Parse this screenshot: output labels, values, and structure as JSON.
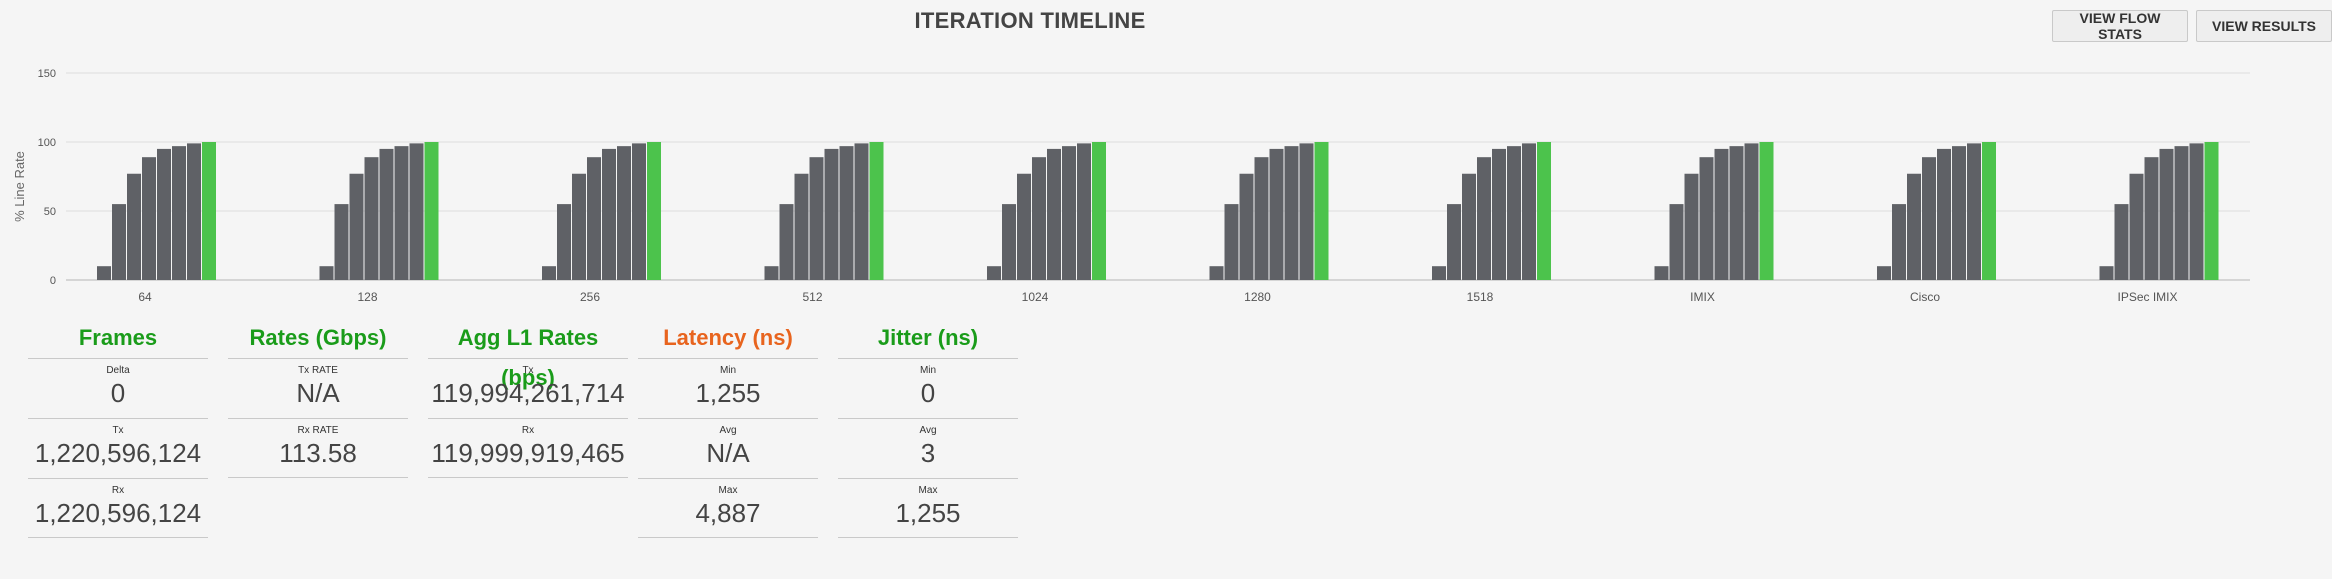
{
  "title": "ITERATION TIMELINE",
  "buttons": {
    "view_flow_stats": "VIEW FLOW STATS",
    "view_results": "VIEW RESULTS"
  },
  "colors": {
    "bar": "#5f6166",
    "bar_final": "#4cc34c",
    "frames_title": "#1a9c1a",
    "latency_title": "#e8641e"
  },
  "chart_data": {
    "type": "bar",
    "ylabel": "% Line Rate",
    "ylim": [
      0,
      150
    ],
    "yticks": [
      0,
      50,
      100,
      150
    ],
    "grid": true,
    "groups": [
      {
        "label": "64",
        "values": [
          10,
          55,
          77,
          89,
          95,
          97,
          99,
          100
        ]
      },
      {
        "label": "128",
        "values": [
          10,
          55,
          77,
          89,
          95,
          97,
          99,
          100
        ]
      },
      {
        "label": "256",
        "values": [
          10,
          55,
          77,
          89,
          95,
          97,
          99,
          100
        ]
      },
      {
        "label": "512",
        "values": [
          10,
          55,
          77,
          89,
          95,
          97,
          99,
          100
        ]
      },
      {
        "label": "1024",
        "values": [
          10,
          55,
          77,
          89,
          95,
          97,
          99,
          100
        ]
      },
      {
        "label": "1280",
        "values": [
          10,
          55,
          77,
          89,
          95,
          97,
          99,
          100
        ]
      },
      {
        "label": "1518",
        "values": [
          10,
          55,
          77,
          89,
          95,
          97,
          99,
          100
        ]
      },
      {
        "label": "IMIX",
        "values": [
          10,
          55,
          77,
          89,
          95,
          97,
          99,
          100
        ]
      },
      {
        "label": "Cisco",
        "values": [
          10,
          55,
          77,
          89,
          95,
          97,
          99,
          100
        ]
      },
      {
        "label": "IPSec IMIX",
        "values": [
          10,
          55,
          77,
          89,
          95,
          97,
          99,
          100
        ]
      }
    ]
  },
  "stats": {
    "frames": {
      "title": "Frames",
      "rows": [
        {
          "label": "Delta",
          "value": "0"
        },
        {
          "label": "Tx",
          "value": "1,220,596,124"
        },
        {
          "label": "Rx",
          "value": "1,220,596,124"
        }
      ]
    },
    "rates": {
      "title": "Rates (Gbps)",
      "rows": [
        {
          "label": "Tx RATE",
          "value": "N/A"
        },
        {
          "label": "Rx RATE",
          "value": "113.58"
        }
      ]
    },
    "agg": {
      "title": "Agg L1 Rates (bps)",
      "rows": [
        {
          "label": "Tx",
          "value": "119,994,261,714"
        },
        {
          "label": "Rx",
          "value": "119,999,919,465"
        }
      ]
    },
    "latency": {
      "title": "Latency (ns)",
      "rows": [
        {
          "label": "Min",
          "value": "1,255"
        },
        {
          "label": "Avg",
          "value": "N/A"
        },
        {
          "label": "Max",
          "value": "4,887"
        }
      ]
    },
    "jitter": {
      "title": "Jitter (ns)",
      "rows": [
        {
          "label": "Min",
          "value": "0"
        },
        {
          "label": "Avg",
          "value": "3"
        },
        {
          "label": "Max",
          "value": "1,255"
        }
      ]
    }
  }
}
